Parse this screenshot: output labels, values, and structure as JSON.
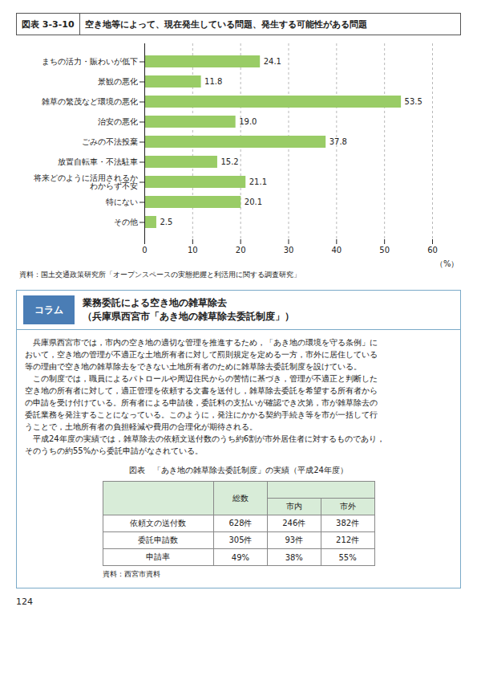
{
  "chart_data": {
    "type": "bar",
    "orientation": "horizontal",
    "title": "空き地等によって、現在発生している問題、発生する可能性がある問題",
    "annotations": [
      "図表 3-3-10",
      "資料：国土交通政策研究所「オープンスペースの実態把握と利活用に関する調査研究」"
    ],
    "categories": [
      "まちの活力・賑わいが低下",
      "景観の悪化",
      "雑草の繁茂など環境の悪化",
      "治安の悪化",
      "ごみの不法投棄",
      "放置自転車・不法駐車",
      "将来どのように活用されるか\nわからず不安",
      "特にない",
      "その他"
    ],
    "values": [
      24.1,
      11.8,
      53.5,
      19.0,
      37.8,
      15.2,
      21.1,
      20.1,
      2.5
    ],
    "value_labels": [
      "24.1",
      "11.8",
      "53.5",
      "19.0",
      "37.8",
      "15.2",
      "21.1",
      "20.1",
      "2.5"
    ],
    "color": "#99cc66",
    "xlabel": "（%）",
    "xlim": [
      0,
      60
    ],
    "xticks": [
      0,
      10,
      20,
      30,
      40,
      50,
      60
    ],
    "grid": true,
    "data_labels": true
  },
  "column": {
    "label": "コラム",
    "title_lines": [
      "業務委託による空き地の雑草除去",
      "（兵庫県西宮市「あき地の雑草除去委託制度」）"
    ],
    "body_lines": [
      "　兵庫県西宮市では，市内の空き地の適切な管理を推進するため，「あき地の環境を守る条例」に",
      "おいて，空き地の管理が不適正な土地所有者に対して罰則規定を定める一方，市外に居住している",
      "等の理由で空き地の雑草除去をできない土地所有者のために雑草除去委託制度を設けている。",
      "　この制度では，職員によるパトロールや周辺住民からの苦情に基づき，管理が不適正と判断した",
      "空き地の所有者に対して，適正管理を依頼する文書を送付し，雑草除去委託を希望する所有者から",
      "の申請を受け付けている。所有者による申請後，委託料の支払いが確認でき次第，市が雑草除去の",
      "委託業務を発注することになっている。このように，発注にかかる契約手続き等を市が一括して行",
      "うことで，土地所有者の負担軽減や費用の合理化が期待される。",
      "　平成24年度の実績では，雑草除去の依頼文送付数のうち約6割が市外居住者に対するものであり，",
      "そのうちの約55%から委託申請がなされている。"
    ],
    "table": {
      "title": "図表　「あき地の雑草除去委託制度」の実績（平成24年度）",
      "header": [
        "総数",
        "市内",
        "市外"
      ],
      "rows": [
        [
          "依頼文の送付数",
          "628件",
          "246件",
          "382件"
        ],
        [
          "委託申請数",
          "305件",
          "93件",
          "212件"
        ],
        [
          "申請率",
          "49%",
          "38%",
          "55%"
        ]
      ],
      "source": "資料：西宮市資料"
    }
  },
  "page_number": "124"
}
